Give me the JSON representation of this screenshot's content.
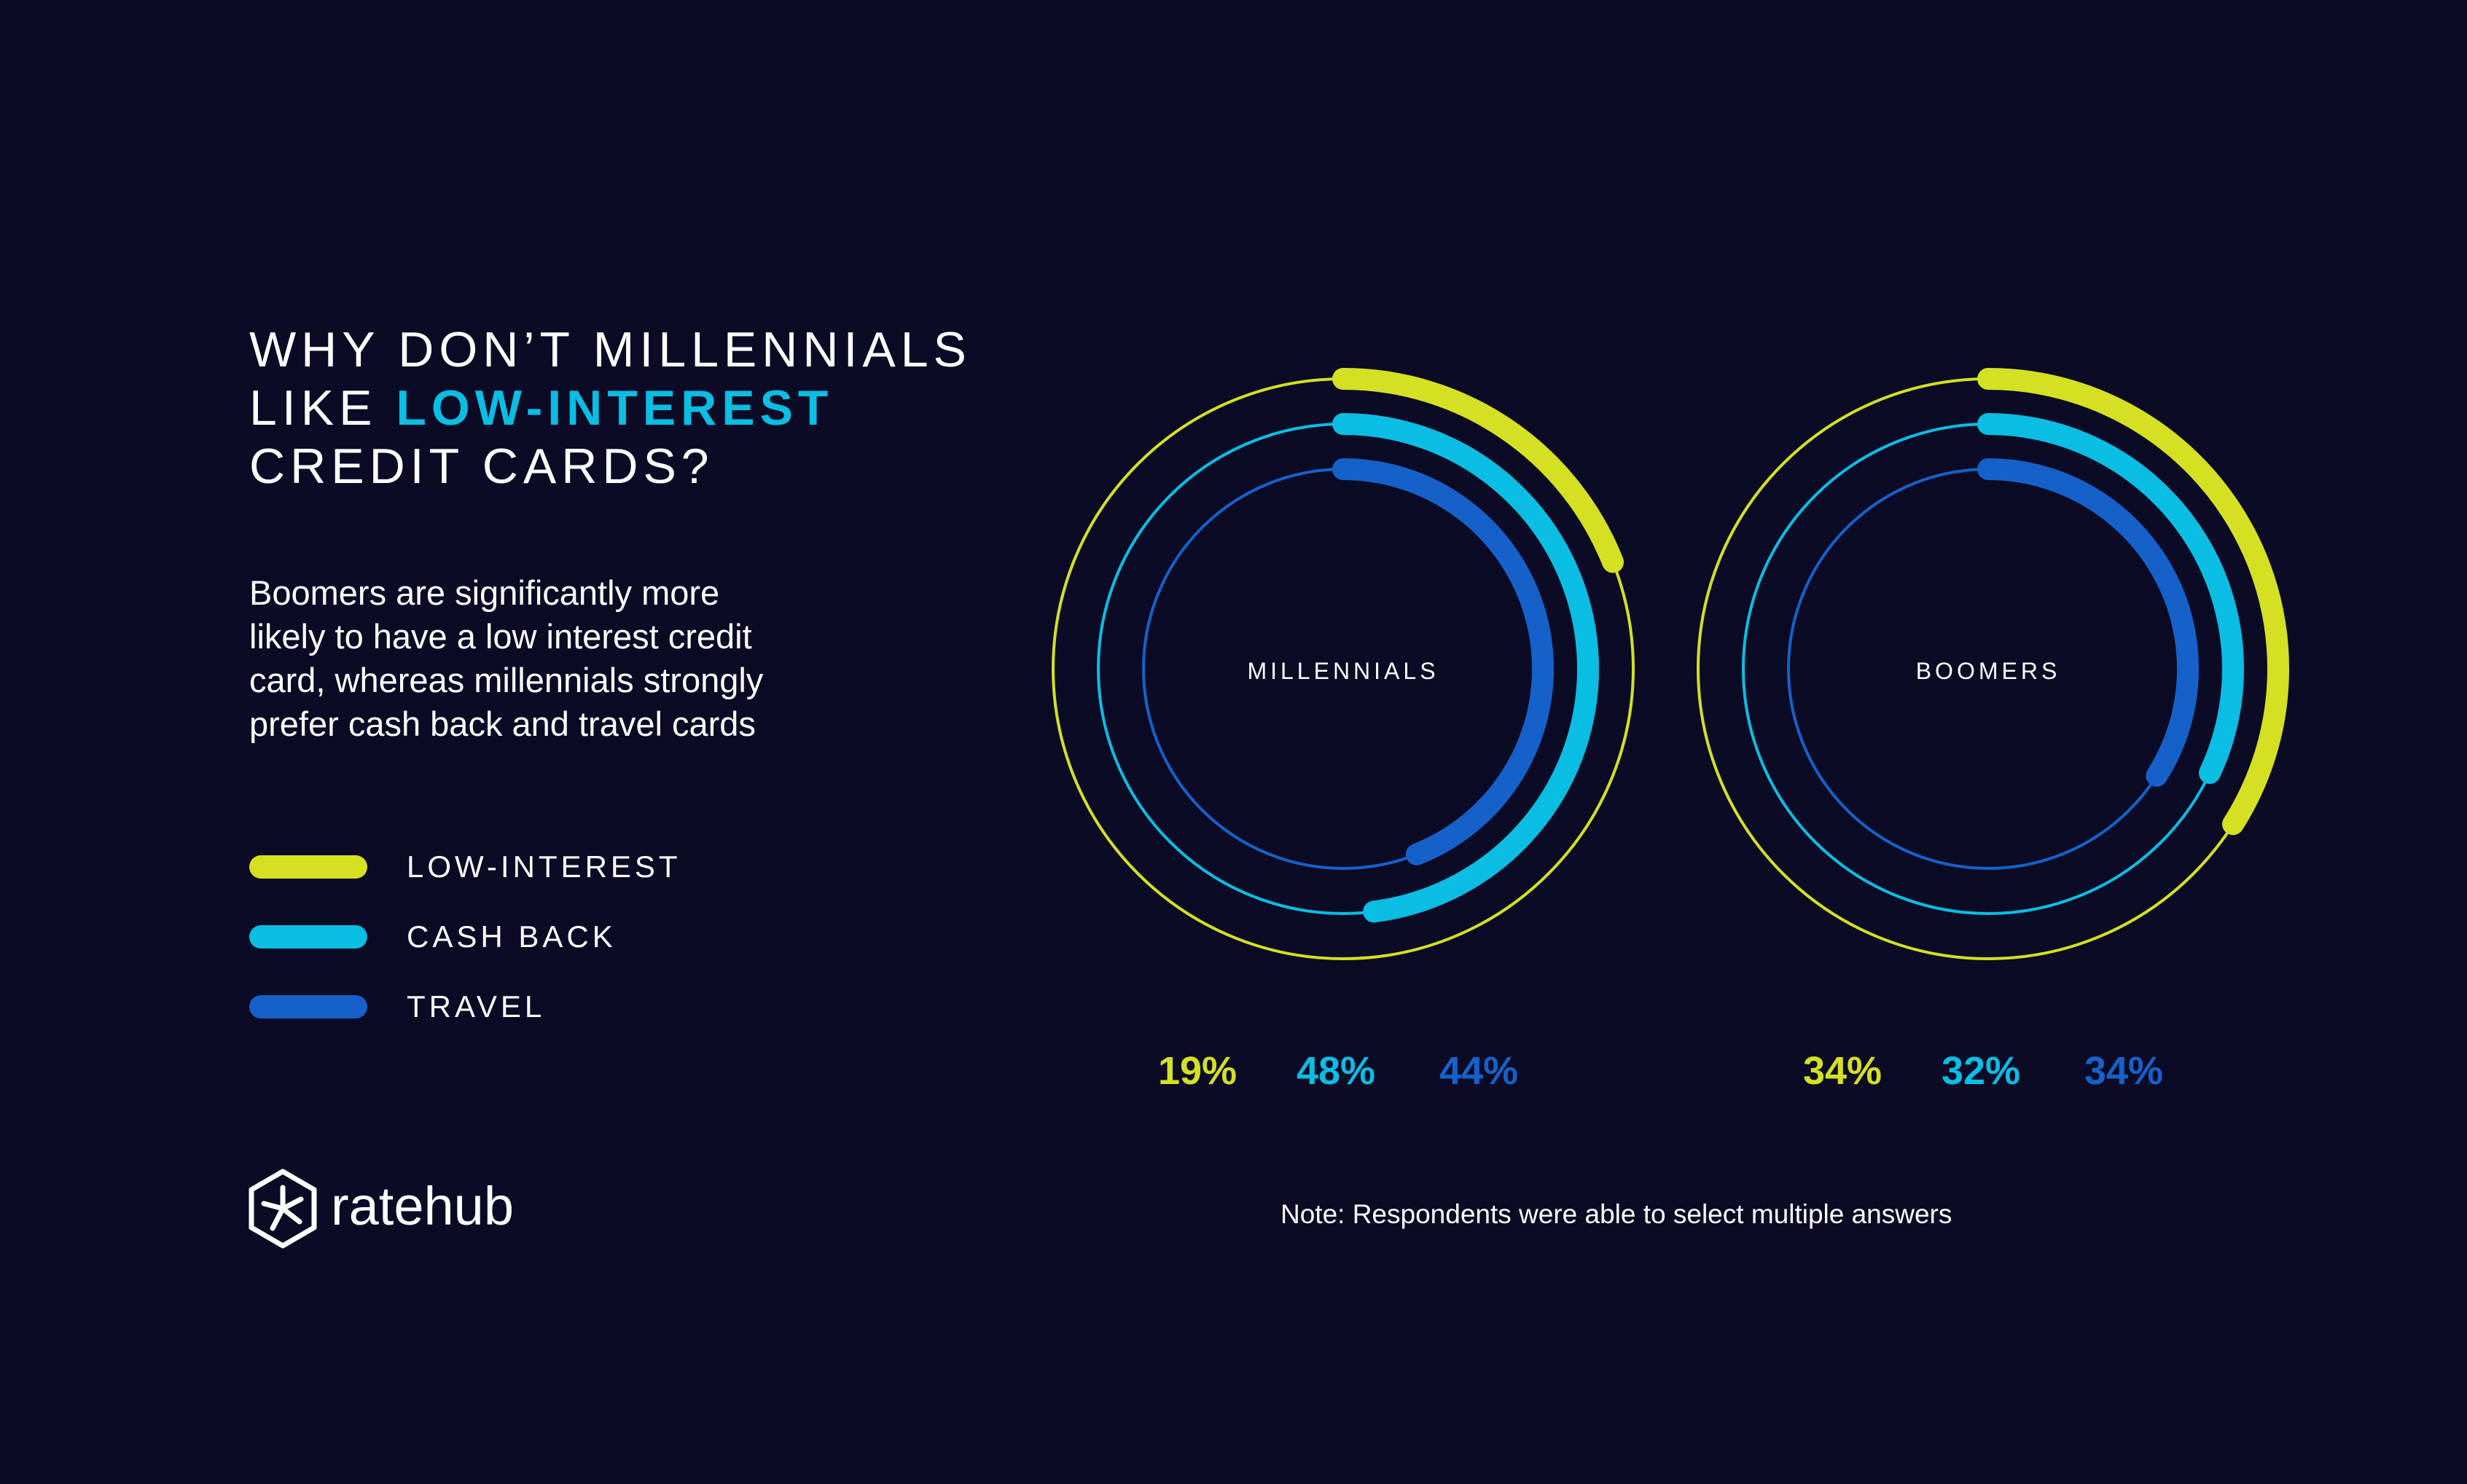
{
  "header": {
    "title_line1": "WHY DON’T MILLENNIALS",
    "title_line2_prefix": "LIKE ",
    "title_line2_highlight": "LOW-INTEREST",
    "title_line3": "CREDIT CARDS?",
    "subtitle_lines": [
      "Boomers are significantly more",
      "likely to have a low interest credit",
      "card, whereas millennials strongly",
      "prefer cash back and travel cards"
    ]
  },
  "legend": [
    {
      "label": "LOW-INTEREST",
      "color": "#d4e021"
    },
    {
      "label": "CASH BACK",
      "color": "#0abde3"
    },
    {
      "label": "TRAVEL",
      "color": "#1561c9"
    }
  ],
  "chart_data": [
    {
      "type": "radial-bar",
      "center_label": "MILLENNIALS",
      "series": [
        {
          "name": "LOW-INTEREST",
          "value": 19,
          "display": "19%",
          "color": "#d4e021"
        },
        {
          "name": "CASH BACK",
          "value": 48,
          "display": "48%",
          "color": "#0abde3"
        },
        {
          "name": "TRAVEL",
          "value": 44,
          "display": "44%",
          "color": "#1561c9"
        }
      ],
      "max": 100
    },
    {
      "type": "radial-bar",
      "center_label": "BOOMERS",
      "series": [
        {
          "name": "LOW-INTEREST",
          "value": 34,
          "display": "34%",
          "color": "#d4e021"
        },
        {
          "name": "CASH BACK",
          "value": 32,
          "display": "32%",
          "color": "#0abde3"
        },
        {
          "name": "TRAVEL",
          "value": 34,
          "display": "34%",
          "color": "#1561c9"
        }
      ],
      "max": 100
    }
  ],
  "footer": {
    "brand": "ratehub",
    "note": "Note: Respondents were able to select multiple answers"
  },
  "icons": {
    "brand_logo": "hexagon-asterisk-icon"
  }
}
